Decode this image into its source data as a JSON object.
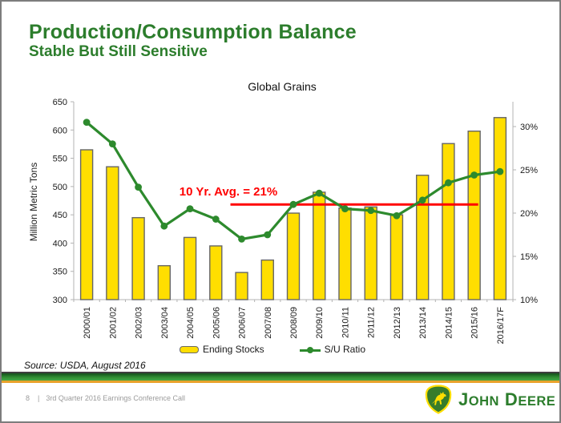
{
  "header": {
    "title": "Production/Consumption Balance",
    "subtitle": "Stable But Still Sensitive"
  },
  "chart_data": {
    "type": "bar",
    "title": "Global Grains",
    "categories": [
      "2000/01",
      "2001/02",
      "2002/03",
      "2003/04",
      "2004/05",
      "2005/06",
      "2006/07",
      "2007/08",
      "2008/09",
      "2009/10",
      "2010/11",
      "2011/12",
      "2012/13",
      "2013/14",
      "2014/15",
      "2015/16",
      "2016/17F"
    ],
    "series": [
      {
        "name": "Ending Stocks",
        "type": "bar",
        "axis": "left",
        "color": "#FFDE00",
        "border_color": "#666666",
        "values": [
          565,
          535,
          445,
          360,
          410,
          395,
          348,
          370,
          453,
          490,
          462,
          464,
          450,
          520,
          576,
          598,
          622
        ]
      },
      {
        "name": "S/U Ratio",
        "type": "line",
        "axis": "right",
        "color": "#2d8a2d",
        "values": [
          30.5,
          28,
          23,
          18.5,
          20.5,
          19.3,
          17,
          17.5,
          21,
          22.3,
          20.5,
          20.3,
          19.7,
          21.5,
          23.5,
          24.4,
          24.8
        ]
      }
    ],
    "left_axis": {
      "label": "Million Metric Tons",
      "min": 300,
      "max": 650,
      "tick_step": 50
    },
    "right_axis": {
      "min": 10,
      "max": 30,
      "tick_step": 5,
      "tick_suffix": "%"
    },
    "annotation": {
      "label": "10 Yr. Avg. = 21%",
      "value": 21,
      "color": "#FF0000",
      "span_start_index": 6,
      "span_end_index": 15
    },
    "legend_position": "bottom",
    "grid": false
  },
  "footer": {
    "source": "Source: USDA, August 2016",
    "page_number": "8",
    "divider": "|",
    "caption": "3rd Quarter 2016 Earnings Conference Call",
    "logo_text": "John Deere"
  },
  "colors": {
    "title_green": "#2c7d2c",
    "deere_green": "#367C2B",
    "deere_yellow": "#FFDE00",
    "avg_line_red": "#FF0000"
  }
}
